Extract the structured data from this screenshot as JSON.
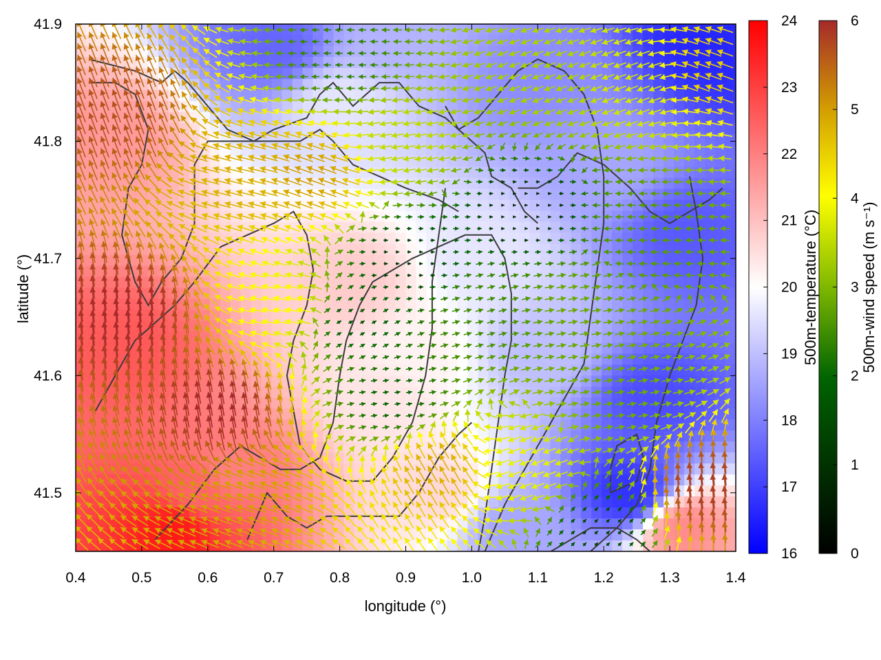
{
  "chart_data": {
    "type": "heatmap",
    "xlabel": "longitude (°)",
    "ylabel": "latitude (°)",
    "xlim": [
      0.4,
      1.4
    ],
    "ylim": [
      41.45,
      41.9
    ],
    "xticks": [
      "0.4",
      "0.5",
      "0.6",
      "0.7",
      "0.8",
      "0.9",
      "1.0",
      "1.1",
      "1.2",
      "1.3",
      "1.4"
    ],
    "yticks": [
      "41.5",
      "41.6",
      "41.7",
      "41.8",
      "41.9"
    ],
    "grid": false,
    "field": {
      "name": "500m-temperature (°C)",
      "colorbar_label": "500m-temperature (°C)",
      "range": [
        16,
        24
      ],
      "ticks": [
        "16",
        "17",
        "18",
        "19",
        "20",
        "21",
        "22",
        "23",
        "24"
      ],
      "colors": [
        "#0000ff",
        "#ffffff",
        "#ff0000"
      ],
      "regions": [
        {
          "lon": 0.48,
          "lat": 41.62,
          "value": 22.6
        },
        {
          "lon": 0.45,
          "lat": 41.8,
          "value": 21.6
        },
        {
          "lon": 0.58,
          "lat": 41.5,
          "value": 22.4
        },
        {
          "lon": 0.55,
          "lat": 41.47,
          "value": 23.6
        },
        {
          "lon": 0.64,
          "lat": 41.52,
          "value": 22.0
        },
        {
          "lon": 0.82,
          "lat": 41.68,
          "value": 20.8
        },
        {
          "lon": 0.86,
          "lat": 41.58,
          "value": 20.4
        },
        {
          "lon": 0.92,
          "lat": 41.62,
          "value": 20.2
        },
        {
          "lon": 0.95,
          "lat": 41.5,
          "value": 20.6
        },
        {
          "lon": 0.8,
          "lat": 41.83,
          "value": 19.6
        },
        {
          "lon": 0.7,
          "lat": 41.88,
          "value": 17.6
        },
        {
          "lon": 0.88,
          "lat": 41.89,
          "value": 18.8
        },
        {
          "lon": 1.1,
          "lat": 41.85,
          "value": 18.2
        },
        {
          "lon": 1.2,
          "lat": 41.78,
          "value": 18.6
        },
        {
          "lon": 1.33,
          "lat": 41.72,
          "value": 17.4
        },
        {
          "lon": 1.36,
          "lat": 41.88,
          "value": 16.6
        },
        {
          "lon": 1.28,
          "lat": 41.58,
          "value": 17.2
        },
        {
          "lon": 1.24,
          "lat": 41.5,
          "value": 16.8
        },
        {
          "lon": 1.1,
          "lat": 41.62,
          "value": 19.0
        },
        {
          "lon": 1.02,
          "lat": 41.7,
          "value": 19.6
        },
        {
          "lon": 1.32,
          "lat": 41.47,
          "value": 21.8
        },
        {
          "lon": 1.06,
          "lat": 41.47,
          "value": 18.6
        }
      ]
    },
    "vectors": {
      "name": "500m-wind speed (m s⁻¹)",
      "colorbar_label": "500m-wind speed (m s⁻¹)",
      "range": [
        0,
        6
      ],
      "ticks": [
        "0",
        "1",
        "2",
        "3",
        "4",
        "5",
        "6"
      ],
      "colors": [
        "#000000",
        "#006400",
        "#7fb800",
        "#ffff00",
        "#d4a000",
        "#a52a2a"
      ],
      "regions": [
        {
          "lon": 0.48,
          "lat": 41.65,
          "speed": 6.0,
          "dir_deg": 95
        },
        {
          "lon": 0.46,
          "lat": 41.82,
          "speed": 5.6,
          "dir_deg": 110
        },
        {
          "lon": 0.62,
          "lat": 41.57,
          "speed": 6.0,
          "dir_deg": 100
        },
        {
          "lon": 0.66,
          "lat": 41.5,
          "speed": 4.8,
          "dir_deg": 160
        },
        {
          "lon": 0.66,
          "lat": 41.77,
          "speed": 4.6,
          "dir_deg": 165
        },
        {
          "lon": 0.76,
          "lat": 41.77,
          "speed": 4.8,
          "dir_deg": 160
        },
        {
          "lon": 0.82,
          "lat": 41.65,
          "speed": 1.0,
          "dir_deg": 30
        },
        {
          "lon": 0.88,
          "lat": 41.58,
          "speed": 1.2,
          "dir_deg": 10
        },
        {
          "lon": 0.9,
          "lat": 41.7,
          "speed": 0.6,
          "dir_deg": 0
        },
        {
          "lon": 0.9,
          "lat": 41.8,
          "speed": 3.0,
          "dir_deg": 190
        },
        {
          "lon": 0.8,
          "lat": 41.87,
          "speed": 1.6,
          "dir_deg": 180
        },
        {
          "lon": 1.02,
          "lat": 41.66,
          "speed": 1.8,
          "dir_deg": 15
        },
        {
          "lon": 1.08,
          "lat": 41.74,
          "speed": 0.4,
          "dir_deg": 0
        },
        {
          "lon": 1.15,
          "lat": 41.66,
          "speed": 2.2,
          "dir_deg": 10
        },
        {
          "lon": 1.12,
          "lat": 41.85,
          "speed": 2.8,
          "dir_deg": 200
        },
        {
          "lon": 1.25,
          "lat": 41.85,
          "speed": 3.2,
          "dir_deg": 200
        },
        {
          "lon": 1.25,
          "lat": 41.73,
          "speed": 2.0,
          "dir_deg": 180
        },
        {
          "lon": 1.22,
          "lat": 41.58,
          "speed": 2.2,
          "dir_deg": 10
        },
        {
          "lon": 1.08,
          "lat": 41.52,
          "speed": 3.4,
          "dir_deg": 200
        },
        {
          "lon": 1.35,
          "lat": 41.5,
          "speed": 5.8,
          "dir_deg": 95
        },
        {
          "lon": 1.36,
          "lat": 41.86,
          "speed": 4.2,
          "dir_deg": 160
        },
        {
          "lon": 0.95,
          "lat": 41.52,
          "speed": 4.6,
          "dir_deg": 120
        },
        {
          "lon": 0.72,
          "lat": 41.66,
          "speed": 3.6,
          "dir_deg": 170
        },
        {
          "lon": 1.2,
          "lat": 41.47,
          "speed": 0.8,
          "dir_deg": 45
        }
      ]
    },
    "contour_lines": [
      [
        [
          0.42,
          41.87
        ],
        [
          0.49,
          41.86
        ],
        [
          0.53,
          41.85
        ],
        [
          0.55,
          41.86
        ],
        [
          0.57,
          41.85
        ],
        [
          0.6,
          41.83
        ],
        [
          0.63,
          41.81
        ],
        [
          0.67,
          41.8
        ],
        [
          0.7,
          41.81
        ],
        [
          0.75,
          41.82
        ],
        [
          0.77,
          41.84
        ],
        [
          0.79,
          41.85
        ],
        [
          0.82,
          41.83
        ],
        [
          0.86,
          41.85
        ],
        [
          0.89,
          41.85
        ],
        [
          0.92,
          41.83
        ],
        [
          0.96,
          41.82
        ],
        [
          1.0,
          41.8
        ],
        [
          1.02,
          41.79
        ],
        [
          1.03,
          41.77
        ],
        [
          1.06,
          41.76
        ],
        [
          1.08,
          41.74
        ],
        [
          1.1,
          41.73
        ]
      ],
      [
        [
          0.42,
          41.85
        ],
        [
          0.46,
          41.85
        ],
        [
          0.49,
          41.84
        ],
        [
          0.51,
          41.81
        ],
        [
          0.5,
          41.78
        ],
        [
          0.48,
          41.76
        ],
        [
          0.47,
          41.72
        ],
        [
          0.49,
          41.68
        ],
        [
          0.51,
          41.66
        ],
        [
          0.53,
          41.68
        ],
        [
          0.56,
          41.7
        ],
        [
          0.58,
          41.73
        ],
        [
          0.58,
          41.78
        ],
        [
          0.6,
          41.8
        ],
        [
          0.65,
          41.8
        ],
        [
          0.7,
          41.8
        ],
        [
          0.74,
          41.8
        ],
        [
          0.77,
          41.81
        ],
        [
          0.79,
          41.8
        ],
        [
          0.82,
          41.78
        ],
        [
          0.86,
          41.77
        ],
        [
          0.9,
          41.76
        ],
        [
          0.95,
          41.75
        ],
        [
          0.98,
          41.74
        ]
      ],
      [
        [
          0.43,
          41.57
        ],
        [
          0.46,
          41.6
        ],
        [
          0.49,
          41.63
        ],
        [
          0.51,
          41.64
        ],
        [
          0.55,
          41.66
        ],
        [
          0.58,
          41.68
        ],
        [
          0.62,
          41.71
        ],
        [
          0.66,
          41.72
        ],
        [
          0.7,
          41.73
        ],
        [
          0.73,
          41.74
        ],
        [
          0.75,
          41.72
        ],
        [
          0.76,
          41.69
        ],
        [
          0.75,
          41.66
        ],
        [
          0.73,
          41.63
        ],
        [
          0.72,
          41.6
        ],
        [
          0.73,
          41.57
        ],
        [
          0.74,
          41.54
        ],
        [
          0.77,
          41.52
        ],
        [
          0.81,
          41.51
        ],
        [
          0.85,
          41.51
        ],
        [
          0.88,
          41.53
        ],
        [
          0.91,
          41.56
        ],
        [
          0.93,
          41.6
        ],
        [
          0.94,
          41.64
        ],
        [
          0.94,
          41.68
        ],
        [
          0.95,
          41.72
        ],
        [
          0.96,
          41.76
        ]
      ],
      [
        [
          0.52,
          41.46
        ],
        [
          0.57,
          41.49
        ],
        [
          0.61,
          41.52
        ],
        [
          0.65,
          41.54
        ],
        [
          0.68,
          41.53
        ],
        [
          0.71,
          41.52
        ],
        [
          0.74,
          41.52
        ],
        [
          0.77,
          41.53
        ],
        [
          0.79,
          41.56
        ],
        [
          0.8,
          41.6
        ],
        [
          0.81,
          41.63
        ],
        [
          0.83,
          41.66
        ],
        [
          0.85,
          41.68
        ],
        [
          0.88,
          41.69
        ],
        [
          0.91,
          41.7
        ],
        [
          0.95,
          41.71
        ],
        [
          0.99,
          41.72
        ],
        [
          1.03,
          41.72
        ],
        [
          1.05,
          41.7
        ],
        [
          1.06,
          41.67
        ],
        [
          1.06,
          41.63
        ],
        [
          1.05,
          41.6
        ],
        [
          1.04,
          41.56
        ],
        [
          1.03,
          41.52
        ],
        [
          1.02,
          41.48
        ],
        [
          1.01,
          41.45
        ]
      ],
      [
        [
          0.66,
          41.46
        ],
        [
          0.69,
          41.5
        ],
        [
          0.72,
          41.48
        ],
        [
          0.75,
          41.47
        ],
        [
          0.78,
          41.48
        ],
        [
          0.82,
          41.48
        ],
        [
          0.86,
          41.48
        ],
        [
          0.89,
          41.48
        ],
        [
          0.92,
          41.5
        ],
        [
          0.95,
          41.53
        ],
        [
          0.98,
          41.55
        ],
        [
          1.0,
          41.56
        ]
      ],
      [
        [
          1.02,
          41.45
        ],
        [
          1.05,
          41.49
        ],
        [
          1.08,
          41.52
        ],
        [
          1.11,
          41.55
        ],
        [
          1.14,
          41.58
        ],
        [
          1.17,
          41.61
        ],
        [
          1.18,
          41.65
        ],
        [
          1.19,
          41.69
        ],
        [
          1.2,
          41.73
        ],
        [
          1.2,
          41.77
        ],
        [
          1.19,
          41.81
        ],
        [
          1.17,
          41.84
        ],
        [
          1.14,
          41.86
        ],
        [
          1.1,
          41.87
        ],
        [
          1.07,
          41.86
        ],
        [
          1.04,
          41.84
        ],
        [
          1.01,
          41.82
        ],
        [
          0.98,
          41.81
        ],
        [
          0.96,
          41.83
        ]
      ],
      [
        [
          1.07,
          41.76
        ],
        [
          1.1,
          41.76
        ],
        [
          1.13,
          41.77
        ],
        [
          1.16,
          41.79
        ],
        [
          1.2,
          41.78
        ],
        [
          1.24,
          41.76
        ],
        [
          1.27,
          41.74
        ],
        [
          1.3,
          41.73
        ],
        [
          1.33,
          41.74
        ],
        [
          1.36,
          41.75
        ],
        [
          1.38,
          41.76
        ]
      ],
      [
        [
          1.18,
          41.45
        ],
        [
          1.22,
          41.47
        ],
        [
          1.25,
          41.49
        ],
        [
          1.27,
          41.52
        ],
        [
          1.28,
          41.56
        ],
        [
          1.3,
          41.6
        ],
        [
          1.32,
          41.63
        ],
        [
          1.34,
          41.66
        ],
        [
          1.35,
          41.7
        ],
        [
          1.34,
          41.74
        ],
        [
          1.33,
          41.77
        ]
      ],
      [
        [
          1.21,
          41.5
        ],
        [
          1.25,
          41.51
        ],
        [
          1.26,
          41.53
        ],
        [
          1.25,
          41.55
        ],
        [
          1.22,
          41.54
        ],
        [
          1.21,
          41.52
        ],
        [
          1.21,
          41.5
        ]
      ],
      [
        [
          1.12,
          41.45
        ],
        [
          1.15,
          41.46
        ],
        [
          1.18,
          41.47
        ],
        [
          1.22,
          41.47
        ],
        [
          1.25,
          41.46
        ],
        [
          1.27,
          41.45
        ]
      ]
    ]
  }
}
